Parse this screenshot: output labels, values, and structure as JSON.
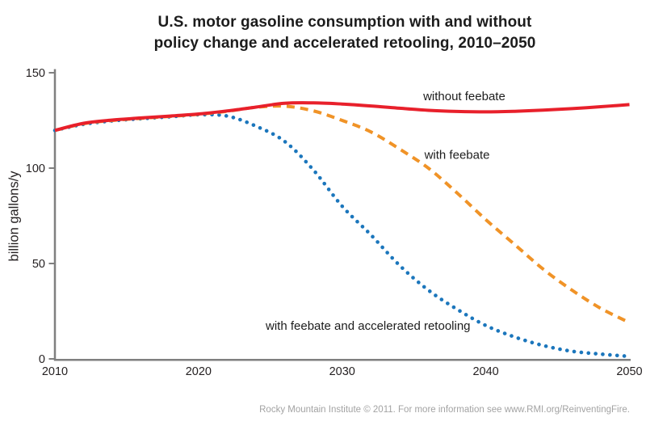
{
  "title": {
    "line1": "U.S. motor gasoline consumption with and without",
    "line2": "policy change and accelerated retooling, 2010–2050"
  },
  "footer": "Rocky Mountain Institute © 2011. For more information see www.RMI.org/ReinventingFire.",
  "colors": {
    "without_feebate": "#e8202b",
    "with_feebate": "#f09327",
    "with_feebate_accelerated_retooling": "#1b76bc",
    "axis": "#7f7f7f",
    "tick_text": "#231f20",
    "annotation_text": "#1c1c1c",
    "footer_text": "#a3a3a3"
  },
  "chart_data": {
    "type": "line",
    "title": "U.S. motor gasoline consumption with and without policy change and accelerated retooling, 2010–2050",
    "xlabel": "",
    "ylabel": "billion gallons/y",
    "xlim": [
      2010,
      2050
    ],
    "ylim": [
      0,
      150
    ],
    "xticks": [
      2010,
      2020,
      2030,
      2040,
      2050
    ],
    "yticks": [
      0,
      50,
      100,
      150
    ],
    "grid": false,
    "legend_position": "inline annotations on chart",
    "x": [
      2010,
      2012,
      2014,
      2016,
      2018,
      2020,
      2022,
      2024,
      2026,
      2028,
      2030,
      2032,
      2034,
      2036,
      2038,
      2040,
      2042,
      2044,
      2046,
      2048,
      2050
    ],
    "series": [
      {
        "name": "with feebate and accelerated retooling",
        "color": "#1b76bc",
        "style": "dotted",
        "values": [
          119.8,
          123.0,
          124.8,
          125.9,
          126.9,
          128.0,
          127.3,
          122.0,
          114.0,
          99.0,
          80.0,
          65.0,
          49.0,
          36.0,
          26.0,
          17.5,
          11.5,
          7.0,
          4.0,
          2.5,
          1.3
        ]
      },
      {
        "name": "with feebate",
        "color": "#f09327",
        "style": "dashed",
        "values": [
          119.8,
          123.3,
          125.0,
          126.1,
          127.1,
          128.2,
          129.8,
          131.9,
          132.5,
          130.0,
          125.0,
          119.0,
          110.0,
          100.0,
          87.0,
          73.0,
          60.0,
          47.0,
          36.0,
          26.5,
          19.0
        ]
      },
      {
        "name": "without feebate",
        "color": "#e8202b",
        "style": "solid",
        "values": [
          119.8,
          123.5,
          125.2,
          126.3,
          127.3,
          128.4,
          130.0,
          132.0,
          134.0,
          134.2,
          133.6,
          132.6,
          131.4,
          130.3,
          129.7,
          129.5,
          129.8,
          130.4,
          131.2,
          132.2,
          133.3
        ]
      }
    ],
    "annotations": [
      {
        "text": "without feebate",
        "x": 2038.5,
        "y": 137.7
      },
      {
        "text": "with feebate",
        "x": 2038.0,
        "y": 107.0
      },
      {
        "text": "with feebate and accelerated retooling",
        "x": 2031.8,
        "y": 17.4
      }
    ]
  }
}
